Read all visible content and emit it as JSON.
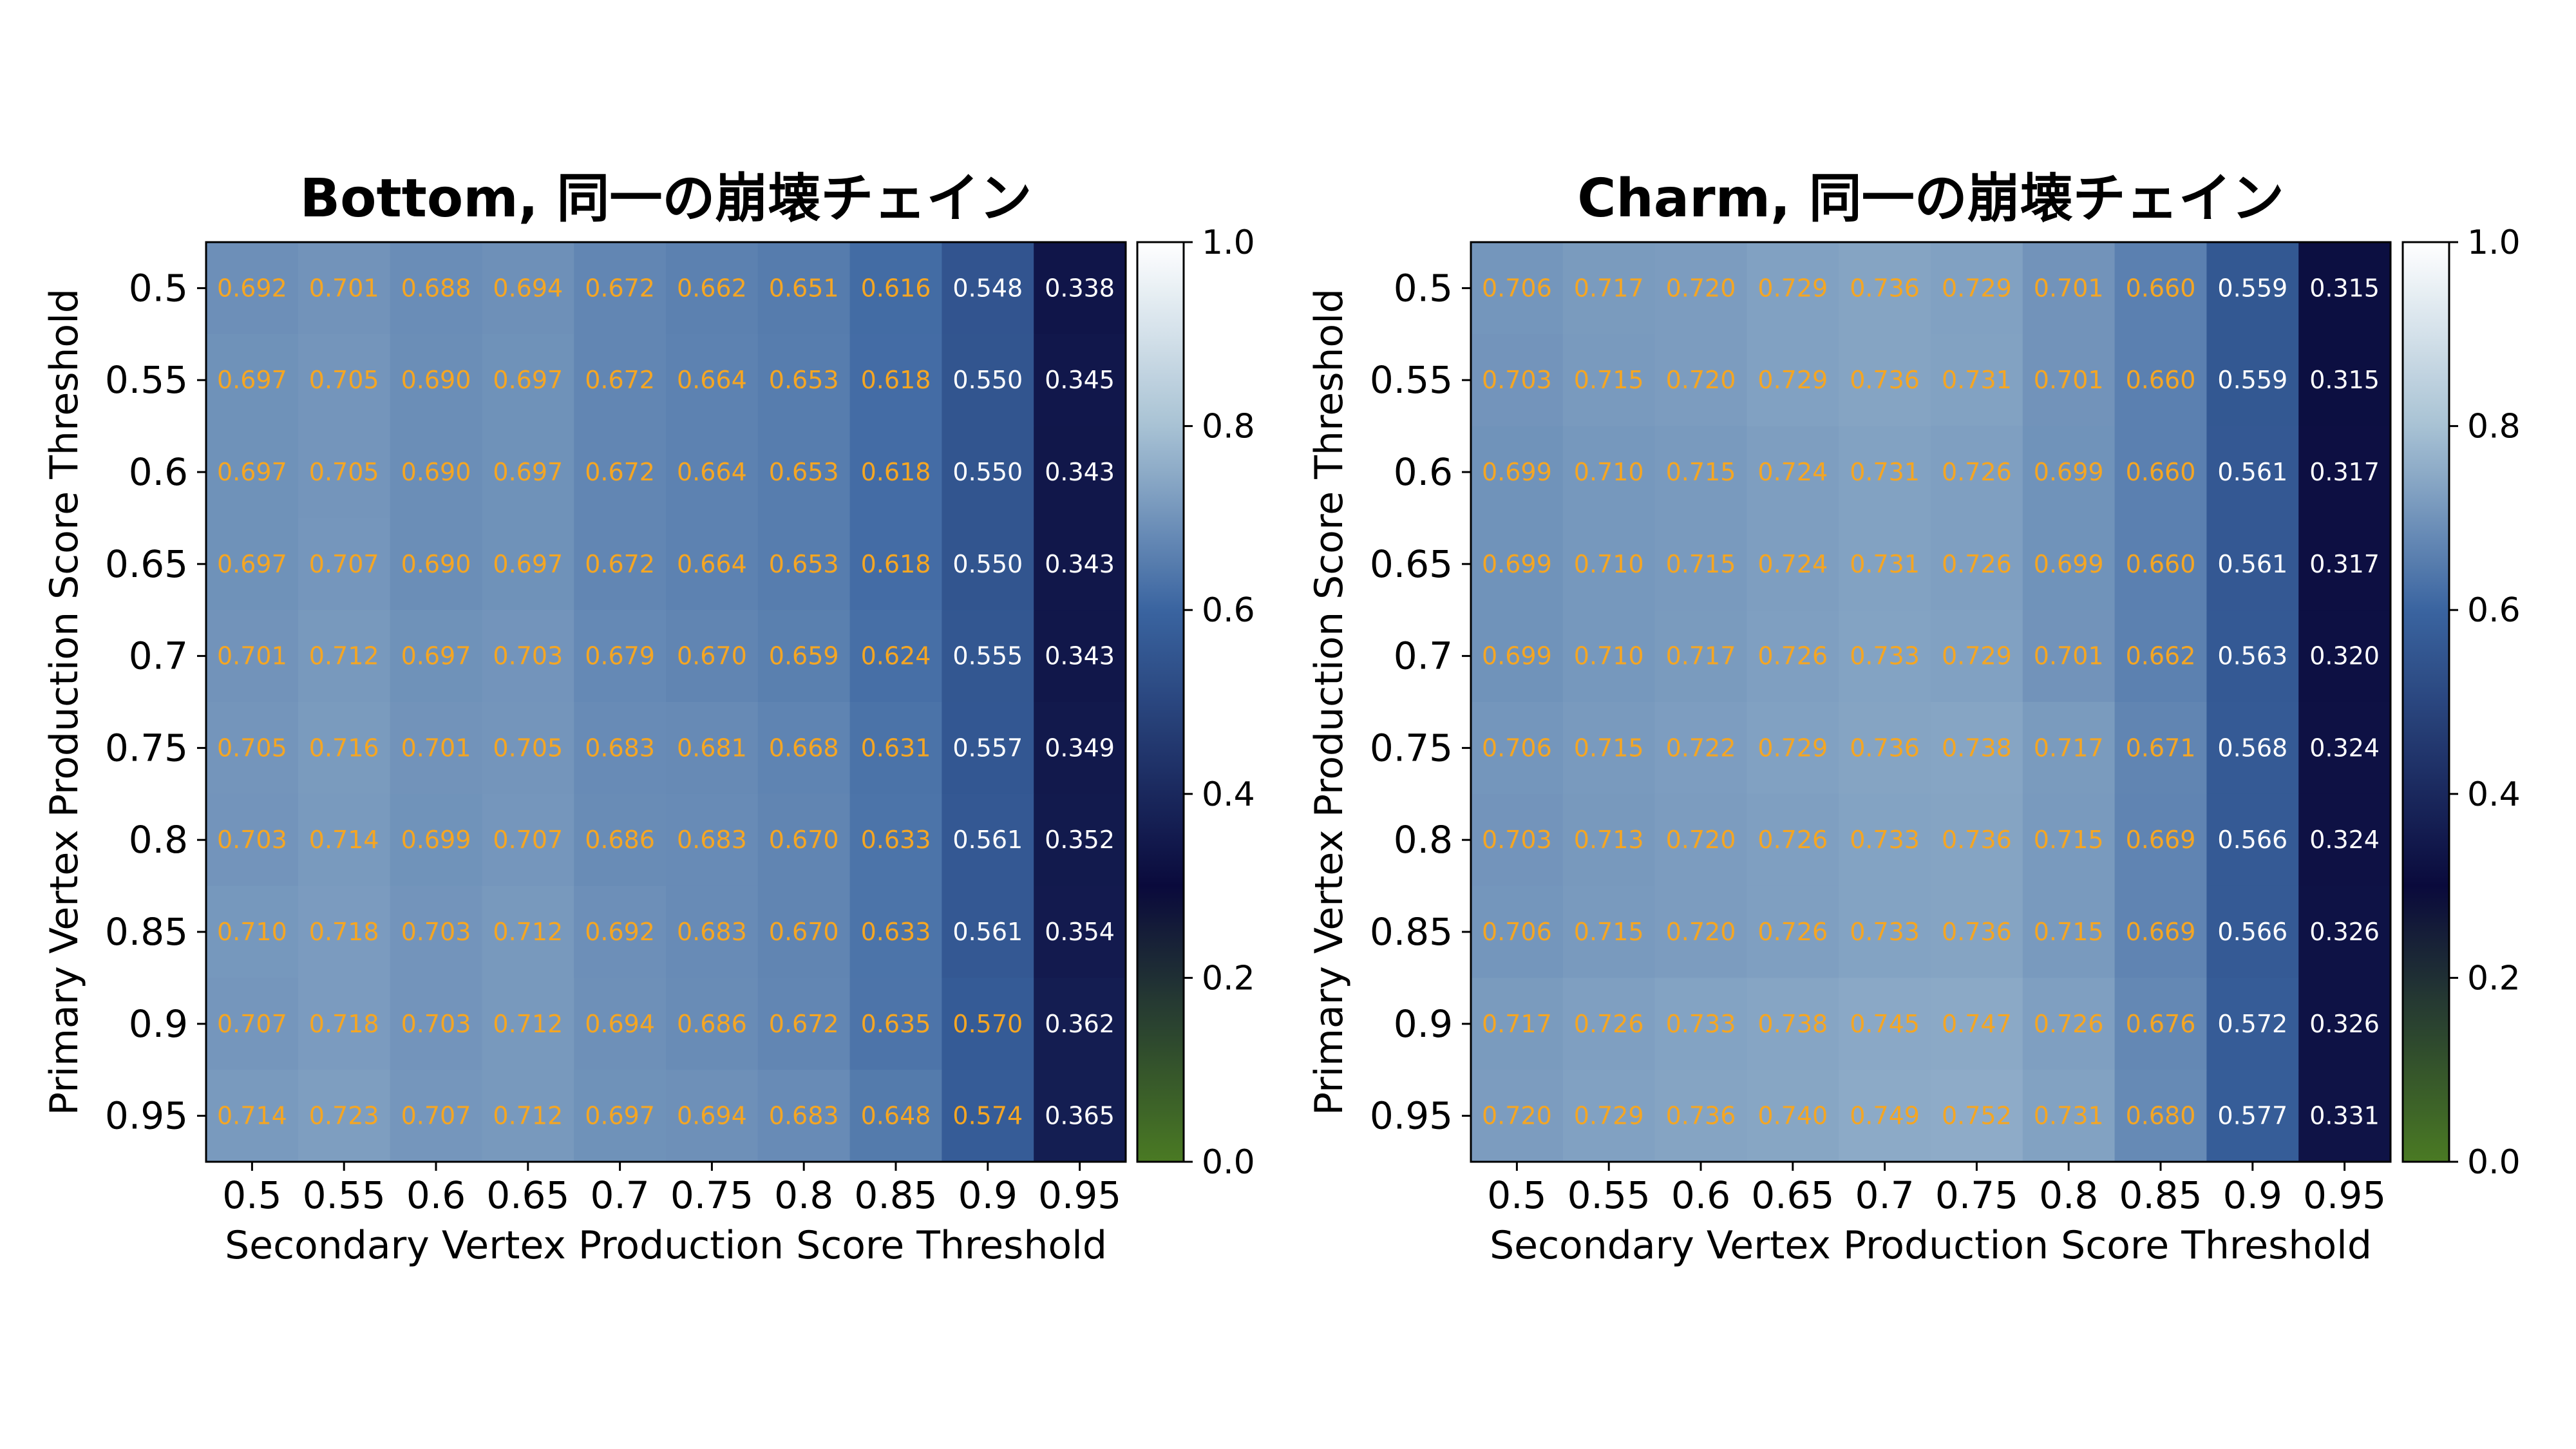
{
  "chart_data": [
    {
      "type": "heatmap",
      "title": "Bottom, 同一の崩壊チェイン",
      "xlabel": "Secondary Vertex Production Score Threshold",
      "ylabel": "Primary Vertex Production Score Threshold",
      "x_ticks": [
        "0.5",
        "0.55",
        "0.6",
        "0.65",
        "0.7",
        "0.75",
        "0.8",
        "0.85",
        "0.9",
        "0.95"
      ],
      "y_ticks": [
        "0.5",
        "0.55",
        "0.6",
        "0.65",
        "0.7",
        "0.75",
        "0.8",
        "0.85",
        "0.9",
        "0.95"
      ],
      "values": [
        [
          0.692,
          0.701,
          0.688,
          0.694,
          0.672,
          0.662,
          0.651,
          0.616,
          0.548,
          0.338
        ],
        [
          0.697,
          0.705,
          0.69,
          0.697,
          0.672,
          0.664,
          0.653,
          0.618,
          0.55,
          0.345
        ],
        [
          0.697,
          0.705,
          0.69,
          0.697,
          0.672,
          0.664,
          0.653,
          0.618,
          0.55,
          0.343
        ],
        [
          0.697,
          0.707,
          0.69,
          0.697,
          0.672,
          0.664,
          0.653,
          0.618,
          0.55,
          0.343
        ],
        [
          0.701,
          0.712,
          0.697,
          0.703,
          0.679,
          0.67,
          0.659,
          0.624,
          0.555,
          0.343
        ],
        [
          0.705,
          0.716,
          0.701,
          0.705,
          0.683,
          0.681,
          0.668,
          0.631,
          0.557,
          0.349
        ],
        [
          0.703,
          0.714,
          0.699,
          0.707,
          0.686,
          0.683,
          0.67,
          0.633,
          0.561,
          0.352
        ],
        [
          0.71,
          0.718,
          0.703,
          0.712,
          0.692,
          0.683,
          0.67,
          0.633,
          0.561,
          0.354
        ],
        [
          0.707,
          0.718,
          0.703,
          0.712,
          0.694,
          0.686,
          0.672,
          0.635,
          0.57,
          0.362
        ],
        [
          0.714,
          0.723,
          0.707,
          0.712,
          0.697,
          0.694,
          0.683,
          0.648,
          0.574,
          0.365
        ]
      ],
      "labels": [
        [
          "0.692",
          "0.701",
          "0.688",
          "0.694",
          "0.672",
          "0.662",
          "0.651",
          "0.616",
          "0.548",
          "0.338"
        ],
        [
          "0.697",
          "0.705",
          "0.690",
          "0.697",
          "0.672",
          "0.664",
          "0.653",
          "0.618",
          "0.550",
          "0.345"
        ],
        [
          "0.697",
          "0.705",
          "0.690",
          "0.697",
          "0.672",
          "0.664",
          "0.653",
          "0.618",
          "0.550",
          "0.343"
        ],
        [
          "0.697",
          "0.707",
          "0.690",
          "0.697",
          "0.672",
          "0.664",
          "0.653",
          "0.618",
          "0.550",
          "0.343"
        ],
        [
          "0.701",
          "0.712",
          "0.697",
          "0.703",
          "0.679",
          "0.670",
          "0.659",
          "0.624",
          "0.555",
          "0.343"
        ],
        [
          "0.705",
          "0.716",
          "0.701",
          "0.705",
          "0.683",
          "0.681",
          "0.668",
          "0.631",
          "0.557",
          "0.349"
        ],
        [
          "0.703",
          "0.714",
          "0.699",
          "0.707",
          "0.686",
          "0.683",
          "0.670",
          "0.633",
          "0.561",
          "0.352"
        ],
        [
          "0.710",
          "0.718",
          "0.703",
          "0.712",
          "0.692",
          "0.683",
          "0.670",
          "0.633",
          "0.561",
          "0.354"
        ],
        [
          "0.707",
          "0.718",
          "0.703",
          "0.712",
          "0.694",
          "0.686",
          "0.672",
          "0.635",
          "0.570",
          "0.362"
        ],
        [
          "0.714",
          "0.723",
          "0.707",
          "0.712",
          "0.697",
          "0.694",
          "0.683",
          "0.648",
          "0.574",
          "0.365"
        ]
      ],
      "white_text": [
        [
          0,
          8
        ],
        [
          0,
          9
        ],
        [
          1,
          8
        ],
        [
          1,
          9
        ],
        [
          2,
          8
        ],
        [
          2,
          9
        ],
        [
          3,
          8
        ],
        [
          3,
          9
        ],
        [
          4,
          8
        ],
        [
          4,
          9
        ],
        [
          5,
          8
        ],
        [
          5,
          9
        ],
        [
          6,
          8
        ],
        [
          6,
          9
        ],
        [
          7,
          8
        ],
        [
          7,
          9
        ],
        [
          8,
          9
        ],
        [
          9,
          9
        ]
      ],
      "colorbar_ticks": [
        "0.0",
        "0.2",
        "0.4",
        "0.6",
        "0.8",
        "1.0"
      ],
      "vmin": 0.0,
      "vmax": 1.0
    },
    {
      "type": "heatmap",
      "title": "Charm, 同一の崩壊チェイン",
      "xlabel": "Secondary Vertex Production Score Threshold",
      "ylabel": "Primary Vertex Production Score Threshold",
      "x_ticks": [
        "0.5",
        "0.55",
        "0.6",
        "0.65",
        "0.7",
        "0.75",
        "0.8",
        "0.85",
        "0.9",
        "0.95"
      ],
      "y_ticks": [
        "0.5",
        "0.55",
        "0.6",
        "0.65",
        "0.7",
        "0.75",
        "0.8",
        "0.85",
        "0.9",
        "0.95"
      ],
      "values": [
        [
          0.706,
          0.717,
          0.72,
          0.729,
          0.736,
          0.729,
          0.701,
          0.66,
          0.559,
          0.315
        ],
        [
          0.703,
          0.715,
          0.72,
          0.729,
          0.736,
          0.731,
          0.701,
          0.66,
          0.559,
          0.315
        ],
        [
          0.699,
          0.71,
          0.715,
          0.724,
          0.731,
          0.726,
          0.699,
          0.66,
          0.561,
          0.317
        ],
        [
          0.699,
          0.71,
          0.715,
          0.724,
          0.731,
          0.726,
          0.699,
          0.66,
          0.561,
          0.317
        ],
        [
          0.699,
          0.71,
          0.717,
          0.726,
          0.733,
          0.729,
          0.701,
          0.662,
          0.563,
          0.32
        ],
        [
          0.706,
          0.715,
          0.722,
          0.729,
          0.736,
          0.738,
          0.717,
          0.671,
          0.568,
          0.324
        ],
        [
          0.703,
          0.713,
          0.72,
          0.726,
          0.733,
          0.736,
          0.715,
          0.669,
          0.566,
          0.324
        ],
        [
          0.706,
          0.715,
          0.72,
          0.726,
          0.733,
          0.736,
          0.715,
          0.669,
          0.566,
          0.326
        ],
        [
          0.717,
          0.726,
          0.733,
          0.738,
          0.745,
          0.747,
          0.726,
          0.676,
          0.572,
          0.326
        ],
        [
          0.72,
          0.729,
          0.736,
          0.74,
          0.749,
          0.752,
          0.731,
          0.68,
          0.577,
          0.331
        ]
      ],
      "labels": [
        [
          "0.706",
          "0.717",
          "0.720",
          "0.729",
          "0.736",
          "0.729",
          "0.701",
          "0.660",
          "0.559",
          "0.315"
        ],
        [
          "0.703",
          "0.715",
          "0.720",
          "0.729",
          "0.736",
          "0.731",
          "0.701",
          "0.660",
          "0.559",
          "0.315"
        ],
        [
          "0.699",
          "0.710",
          "0.715",
          "0.724",
          "0.731",
          "0.726",
          "0.699",
          "0.660",
          "0.561",
          "0.317"
        ],
        [
          "0.699",
          "0.710",
          "0.715",
          "0.724",
          "0.731",
          "0.726",
          "0.699",
          "0.660",
          "0.561",
          "0.317"
        ],
        [
          "0.699",
          "0.710",
          "0.717",
          "0.726",
          "0.733",
          "0.729",
          "0.701",
          "0.662",
          "0.563",
          "0.320"
        ],
        [
          "0.706",
          "0.715",
          "0.722",
          "0.729",
          "0.736",
          "0.738",
          "0.717",
          "0.671",
          "0.568",
          "0.324"
        ],
        [
          "0.703",
          "0.713",
          "0.720",
          "0.726",
          "0.733",
          "0.736",
          "0.715",
          "0.669",
          "0.566",
          "0.324"
        ],
        [
          "0.706",
          "0.715",
          "0.720",
          "0.726",
          "0.733",
          "0.736",
          "0.715",
          "0.669",
          "0.566",
          "0.326"
        ],
        [
          "0.717",
          "0.726",
          "0.733",
          "0.738",
          "0.745",
          "0.747",
          "0.726",
          "0.676",
          "0.572",
          "0.326"
        ],
        [
          "0.720",
          "0.729",
          "0.736",
          "0.740",
          "0.749",
          "0.752",
          "0.731",
          "0.680",
          "0.577",
          "0.331"
        ]
      ],
      "white_text": [
        [
          0,
          8
        ],
        [
          0,
          9
        ],
        [
          1,
          8
        ],
        [
          1,
          9
        ],
        [
          2,
          8
        ],
        [
          2,
          9
        ],
        [
          3,
          8
        ],
        [
          3,
          9
        ],
        [
          4,
          8
        ],
        [
          4,
          9
        ],
        [
          5,
          8
        ],
        [
          5,
          9
        ],
        [
          6,
          8
        ],
        [
          6,
          9
        ],
        [
          7,
          8
        ],
        [
          7,
          9
        ],
        [
          8,
          8
        ],
        [
          8,
          9
        ],
        [
          9,
          8
        ],
        [
          9,
          9
        ]
      ],
      "colorbar_ticks": [
        "0.0",
        "0.2",
        "0.4",
        "0.6",
        "0.8",
        "1.0"
      ],
      "vmin": 0.0,
      "vmax": 1.0
    }
  ],
  "colors": {
    "label_default": "#F5A623",
    "label_light": "#FFFFFF",
    "colormap": [
      "#4A7A23",
      "#0A0A3C",
      "#3A64A0",
      "#A8C2D4",
      "#FFFFFF"
    ]
  }
}
